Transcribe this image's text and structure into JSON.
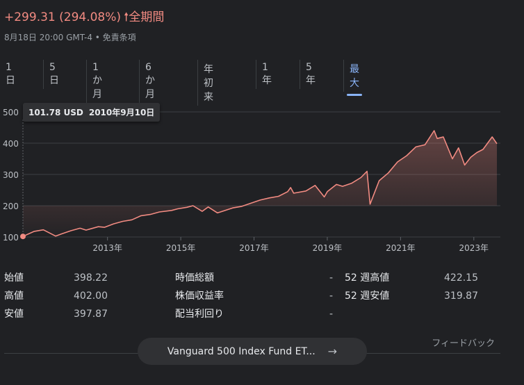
{
  "header": {
    "change": "+299.31 (294.08%)",
    "period": "全期間",
    "meta": "8月18日 20:00 GMT-4 • 免責条項"
  },
  "tabs": [
    "1 日",
    "5 日",
    "1 か月",
    "6 か月",
    "年初来",
    "1 年",
    "5 年",
    "最大"
  ],
  "active_tab": "最大",
  "tooltip": {
    "price": "101.78 USD",
    "date": "2010年9月10日"
  },
  "chart_data": {
    "type": "area",
    "x": [
      "2010-09-10",
      "2011-01",
      "2011-04",
      "2011-08",
      "2011-10",
      "2012-01",
      "2012-04",
      "2012-06",
      "2012-10",
      "2012-12",
      "2013-03",
      "2013-06",
      "2013-09",
      "2013-12",
      "2014-03",
      "2014-06",
      "2014-10",
      "2014-12",
      "2015-03",
      "2015-05",
      "2015-08",
      "2015-10",
      "2016-01",
      "2016-02",
      "2016-06",
      "2016-09",
      "2016-12",
      "2017-03",
      "2017-06",
      "2017-09",
      "2017-12",
      "2018-01",
      "2018-02",
      "2018-06",
      "2018-09",
      "2018-12",
      "2019-01",
      "2019-04",
      "2019-06",
      "2019-09",
      "2019-12",
      "2020-02",
      "2020-03",
      "2020-06",
      "2020-09",
      "2020-12",
      "2021-03",
      "2021-06",
      "2021-09",
      "2021-12",
      "2022-01",
      "2022-03",
      "2022-06",
      "2022-08",
      "2022-10",
      "2022-12",
      "2023-02",
      "2023-04",
      "2023-07",
      "2023-08-18"
    ],
    "values": [
      101.78,
      118,
      123,
      103,
      110,
      120,
      128,
      122,
      133,
      131,
      142,
      150,
      155,
      168,
      172,
      180,
      185,
      190,
      195,
      200,
      182,
      196,
      177,
      180,
      193,
      198,
      208,
      218,
      225,
      230,
      245,
      258,
      240,
      247,
      265,
      228,
      245,
      268,
      262,
      272,
      290,
      310,
      205,
      280,
      305,
      340,
      360,
      388,
      395,
      440,
      415,
      420,
      350,
      385,
      330,
      355,
      370,
      380,
      420,
      398.22
    ],
    "ylim": [
      100,
      500
    ],
    "yticks": [
      100,
      200,
      300,
      400,
      500
    ],
    "xtick_labels": [
      "2013年",
      "2015年",
      "2017年",
      "2019年",
      "2021年",
      "2023年"
    ],
    "xtick_positions": [
      "2013-01",
      "2015-01",
      "2017-01",
      "2019-01",
      "2021-01",
      "2023-01"
    ],
    "color": "#f28b82",
    "grid": true
  },
  "stats": [
    [
      {
        "label": "始値",
        "value": "398.22"
      },
      {
        "label": "高値",
        "value": "402.00"
      },
      {
        "label": "安値",
        "value": "397.87"
      }
    ],
    [
      {
        "label": "時価総額",
        "value": "-"
      },
      {
        "label": "株価収益率",
        "value": "-"
      },
      {
        "label": "配当利回り",
        "value": "-"
      }
    ],
    [
      {
        "label": "52 週高値",
        "value": "422.15"
      },
      {
        "label": "52 週安値",
        "value": "319.87"
      }
    ]
  ],
  "feedback": "フィードバック",
  "related": {
    "label": "Vanguard 500 Index Fund ET..."
  }
}
